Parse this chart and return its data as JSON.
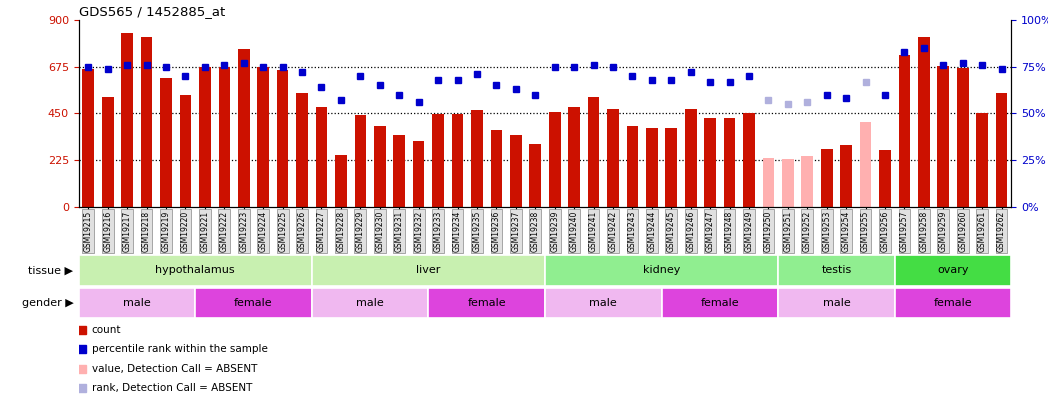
{
  "title": "GDS565 / 1452885_at",
  "samples": [
    "GSM19215",
    "GSM19216",
    "GSM19217",
    "GSM19218",
    "GSM19219",
    "GSM19220",
    "GSM19221",
    "GSM19222",
    "GSM19223",
    "GSM19224",
    "GSM19225",
    "GSM19226",
    "GSM19227",
    "GSM19228",
    "GSM19229",
    "GSM19230",
    "GSM19231",
    "GSM19232",
    "GSM19233",
    "GSM19234",
    "GSM19235",
    "GSM19236",
    "GSM19237",
    "GSM19238",
    "GSM19239",
    "GSM19240",
    "GSM19241",
    "GSM19242",
    "GSM19243",
    "GSM19244",
    "GSM19245",
    "GSM19246",
    "GSM19247",
    "GSM19248",
    "GSM19249",
    "GSM19250",
    "GSM19251",
    "GSM19252",
    "GSM19253",
    "GSM19254",
    "GSM19255",
    "GSM19256",
    "GSM19257",
    "GSM19258",
    "GSM19259",
    "GSM19260",
    "GSM19261",
    "GSM19262"
  ],
  "counts": [
    665,
    530,
    840,
    820,
    620,
    540,
    675,
    675,
    760,
    675,
    660,
    550,
    480,
    250,
    440,
    390,
    345,
    315,
    445,
    445,
    465,
    370,
    345,
    300,
    455,
    480,
    530,
    470,
    390,
    380,
    380,
    470,
    430,
    430,
    450,
    235,
    230,
    245,
    280,
    295,
    410,
    275,
    730,
    820,
    680,
    670,
    450,
    550
  ],
  "absent_mask": [
    false,
    false,
    false,
    false,
    false,
    false,
    false,
    false,
    false,
    false,
    false,
    false,
    false,
    false,
    false,
    false,
    false,
    false,
    false,
    false,
    false,
    false,
    false,
    false,
    false,
    false,
    false,
    false,
    false,
    false,
    false,
    false,
    false,
    false,
    false,
    true,
    true,
    true,
    false,
    false,
    true,
    false,
    false,
    false,
    false,
    false,
    false,
    false
  ],
  "percentile_ranks": [
    75,
    74,
    76,
    76,
    75,
    70,
    75,
    76,
    77,
    75,
    75,
    72,
    64,
    57,
    70,
    65,
    60,
    56,
    68,
    68,
    71,
    65,
    63,
    60,
    75,
    75,
    76,
    75,
    70,
    68,
    68,
    72,
    67,
    67,
    70,
    57,
    55,
    56,
    60,
    58,
    67,
    60,
    83,
    85,
    76,
    77,
    76,
    74
  ],
  "absent_rank_mask": [
    false,
    false,
    false,
    false,
    false,
    false,
    false,
    false,
    false,
    false,
    false,
    false,
    false,
    false,
    false,
    false,
    false,
    false,
    false,
    false,
    false,
    false,
    false,
    false,
    false,
    false,
    false,
    false,
    false,
    false,
    false,
    false,
    false,
    false,
    false,
    true,
    true,
    true,
    false,
    false,
    true,
    false,
    false,
    false,
    false,
    false,
    false,
    false
  ],
  "tissue_segments": [
    {
      "label": "hypothalamus",
      "start": 0,
      "end": 11,
      "color": "#c8f0b0"
    },
    {
      "label": "liver",
      "start": 12,
      "end": 23,
      "color": "#c8f0b0"
    },
    {
      "label": "kidney",
      "start": 24,
      "end": 35,
      "color": "#90ee90"
    },
    {
      "label": "testis",
      "start": 36,
      "end": 41,
      "color": "#90ee90"
    },
    {
      "label": "ovary",
      "start": 42,
      "end": 47,
      "color": "#44dd44"
    }
  ],
  "gender_segments": [
    {
      "label": "male",
      "start": 0,
      "end": 5,
      "color": "#f0b8f0"
    },
    {
      "label": "female",
      "start": 6,
      "end": 11,
      "color": "#dd44dd"
    },
    {
      "label": "male",
      "start": 12,
      "end": 17,
      "color": "#f0b8f0"
    },
    {
      "label": "female",
      "start": 18,
      "end": 23,
      "color": "#dd44dd"
    },
    {
      "label": "male",
      "start": 24,
      "end": 29,
      "color": "#f0b8f0"
    },
    {
      "label": "female",
      "start": 30,
      "end": 35,
      "color": "#dd44dd"
    },
    {
      "label": "male",
      "start": 36,
      "end": 41,
      "color": "#f0b8f0"
    },
    {
      "label": "female",
      "start": 42,
      "end": 47,
      "color": "#dd44dd"
    }
  ],
  "ylim_left": [
    0,
    900
  ],
  "ylim_right": [
    0,
    100
  ],
  "yticks_left": [
    0,
    225,
    450,
    675,
    900
  ],
  "yticks_right": [
    0,
    25,
    50,
    75,
    100
  ],
  "bar_color_normal": "#cc1100",
  "bar_color_absent": "#ffb0b0",
  "dot_color_normal": "#0000cc",
  "dot_color_absent": "#b0b0dd",
  "hline_values": [
    225,
    450,
    675
  ],
  "legend_items": [
    {
      "color": "#cc1100",
      "label": "count"
    },
    {
      "color": "#0000cc",
      "label": "percentile rank within the sample"
    },
    {
      "color": "#ffb0b0",
      "label": "value, Detection Call = ABSENT"
    },
    {
      "color": "#b0b0dd",
      "label": "rank, Detection Call = ABSENT"
    }
  ]
}
